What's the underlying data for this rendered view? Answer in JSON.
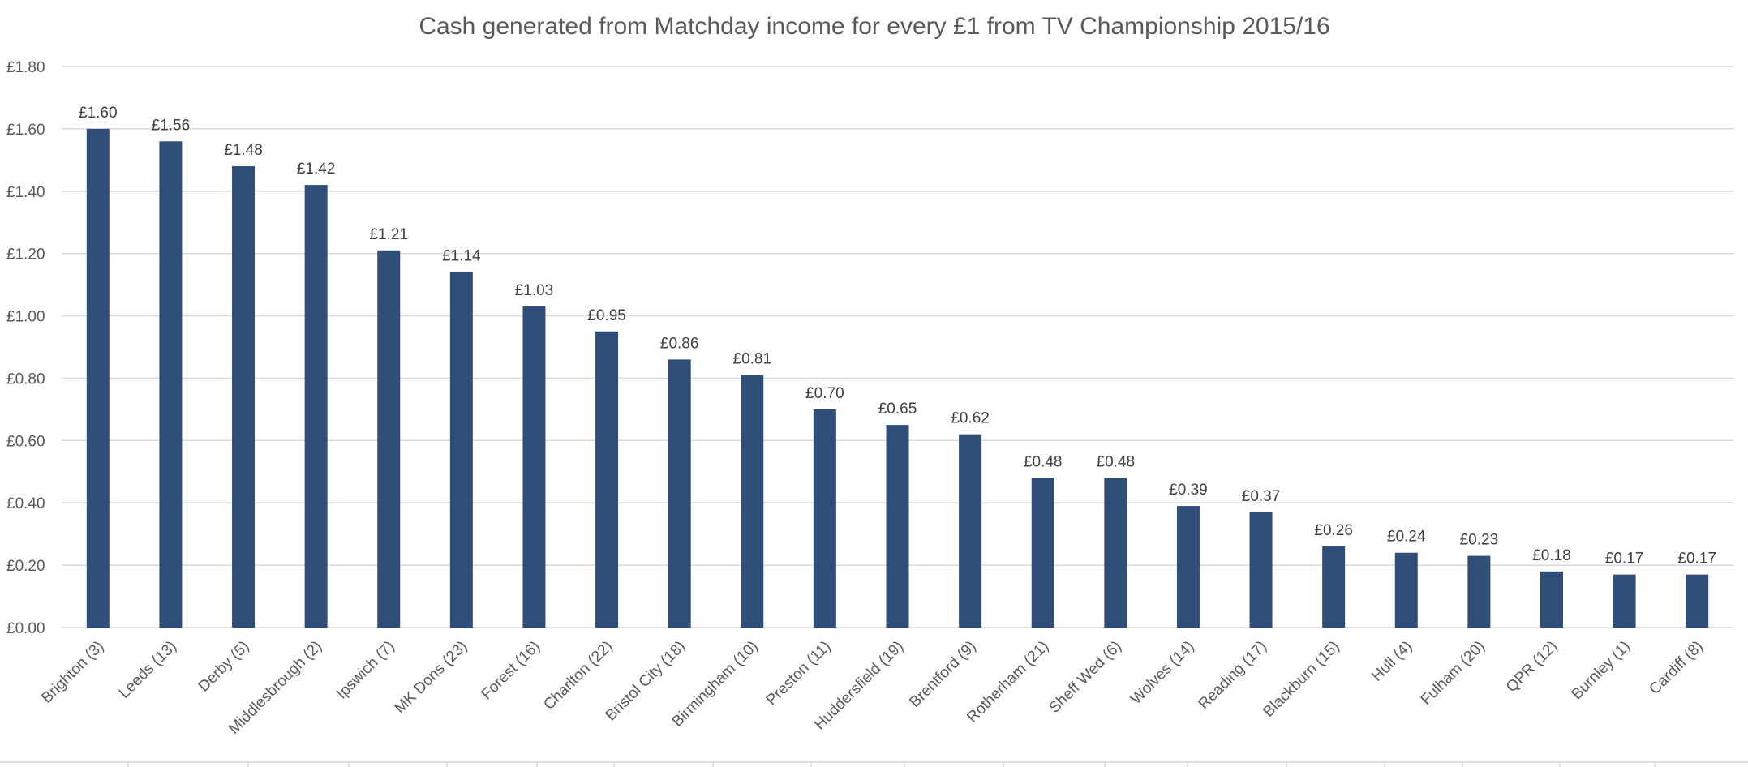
{
  "chart_data": {
    "type": "bar",
    "title": "Cash generated from Matchday income for every £1 from TV Championship 2015/16",
    "xlabel": "",
    "ylabel": "",
    "ylim": [
      0,
      1.8
    ],
    "yticks": [
      "£0.00",
      "£0.20",
      "£0.40",
      "£0.60",
      "£0.80",
      "£1.00",
      "£1.20",
      "£1.40",
      "£1.60",
      "£1.80"
    ],
    "grid": true,
    "legend": "none",
    "bar_color": "#2e4e79",
    "categories": [
      "Brighton (3)",
      "Leeds (13)",
      "Derby (5)",
      "Middlesbrough (2)",
      "Ipswich (7)",
      "MK Dons (23)",
      "Forest (16)",
      "Charlton (22)",
      "Bristol City (18)",
      "Birmingham (10)",
      "Preston (11)",
      "Huddersfield (19)",
      "Brentford (9)",
      "Rotherham (21)",
      "Sheff Wed (6)",
      "Wolves (14)",
      "Reading (17)",
      "Blackburn (15)",
      "Hull (4)",
      "Fulham (20)",
      "QPR (12)",
      "Burnley (1)",
      "Cardiff (8)"
    ],
    "values": [
      1.6,
      1.56,
      1.48,
      1.42,
      1.21,
      1.14,
      1.03,
      0.95,
      0.86,
      0.81,
      0.7,
      0.65,
      0.62,
      0.48,
      0.48,
      0.39,
      0.37,
      0.26,
      0.24,
      0.23,
      0.18,
      0.17,
      0.17
    ],
    "data_labels": [
      "£1.60",
      "£1.56",
      "£1.48",
      "£1.42",
      "£1.21",
      "£1.14",
      "£1.03",
      "£0.95",
      "£0.86",
      "£0.81",
      "£0.70",
      "£0.65",
      "£0.62",
      "£0.48",
      "£0.48",
      "£0.39",
      "£0.37",
      "£0.26",
      "£0.24",
      "£0.23",
      "£0.18",
      "£0.17",
      "£0.17"
    ]
  }
}
